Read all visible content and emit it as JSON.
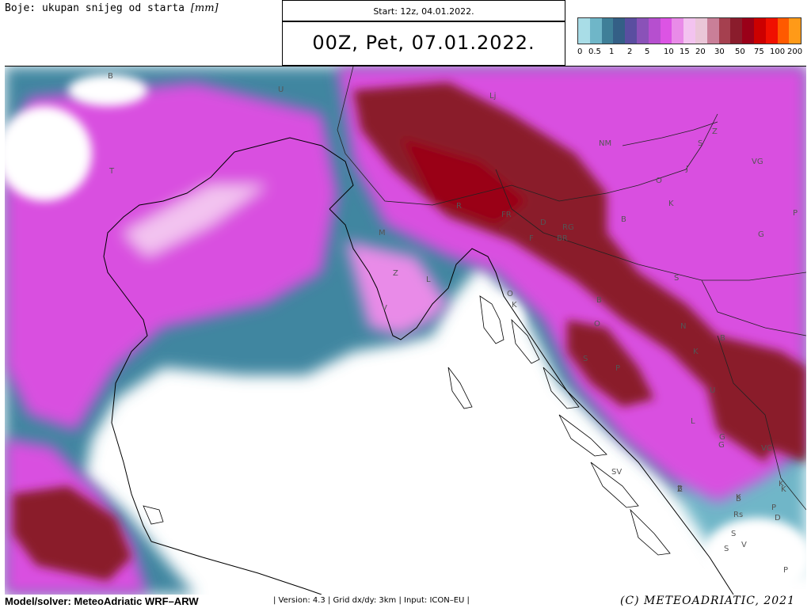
{
  "header": {
    "legend_title": "Boje: ukupan snijeg od starta",
    "legend_unit": "[mm]",
    "start_label": "Start: 12z, 04.01.2022.",
    "valid_label": "00Z, Pet, 07.01.2022."
  },
  "colorbar": {
    "colors": [
      "#a9dde7",
      "#6fb6c8",
      "#3f7f98",
      "#345f86",
      "#5a4ea0",
      "#8a52b8",
      "#b64fcf",
      "#dc54e4",
      "#e98be8",
      "#f3c3f0",
      "#eac6d8",
      "#c97f98",
      "#a5404f",
      "#8a1c2c",
      "#9a0018",
      "#cc0000",
      "#f01000",
      "#ff5a00",
      "#ff9a18"
    ],
    "tick_labels": [
      "0",
      "0.5",
      "1",
      "2",
      "5",
      "10",
      "15",
      "20",
      "30",
      "50",
      "75",
      "100",
      "200"
    ]
  },
  "map": {
    "place_labels": [
      "B",
      "U",
      "T",
      "Lj",
      "NM",
      "S",
      "Z",
      "VG",
      "O",
      "J",
      "K",
      "P",
      "B",
      "R",
      "FR",
      "D",
      "RG",
      "BR",
      "F",
      "M",
      "Z",
      "L",
      "V",
      "O",
      "K",
      "B",
      "O",
      "S",
      "N",
      "K",
      "S",
      "B",
      "G",
      "P",
      "U",
      "G",
      "K",
      "B",
      "L",
      "G",
      "VC",
      "SV",
      "Z",
      "B",
      "K",
      "Rs",
      "D",
      "S",
      "V",
      "P",
      "S",
      "P",
      "K"
    ]
  },
  "footer": {
    "model": "Model/solver: MeteoAdriatic WRF–ARW",
    "meta": "| Version: 4.3 | Grid dx/dy: 3km | Input: ICON–EU |",
    "copyright": "(C) METEOADRIATIC, 2021"
  }
}
